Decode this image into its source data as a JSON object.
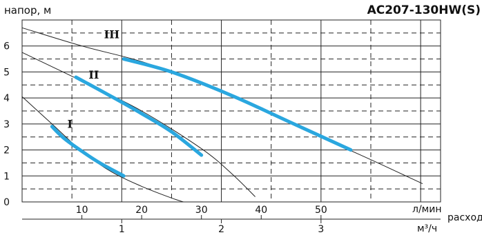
{
  "chart_data": {
    "type": "line",
    "title": "AC207-130HW(S)",
    "ylabel": "напор, м",
    "xlabel": "расход",
    "x_unit_primary": "л/мин",
    "x_unit_secondary": "м³/ч",
    "xlim": [
      0,
      70
    ],
    "ylim": [
      0,
      7
    ],
    "x_ticks": [
      "10",
      "20",
      "30",
      "40",
      "50"
    ],
    "x_ticks_secondary": [
      "1",
      "2",
      "3"
    ],
    "y_ticks": [
      "0",
      "1",
      "2",
      "3",
      "4",
      "5",
      "6"
    ],
    "grid": true,
    "series": [
      {
        "name": "I",
        "curve": [
          [
            0,
            4.05
          ],
          [
            5,
            3.0
          ],
          [
            10,
            1.95
          ],
          [
            15,
            1.15
          ],
          [
            20,
            0.6
          ],
          [
            25,
            0.15
          ],
          [
            27,
            0.0
          ]
        ],
        "operating_range": [
          [
            5,
            2.9
          ],
          [
            7,
            2.45
          ],
          [
            10,
            1.95
          ],
          [
            13,
            1.5
          ],
          [
            17,
            1.0
          ]
        ],
        "label_at": [
          8,
          2.85
        ]
      },
      {
        "name": "II",
        "curve": [
          [
            0,
            5.75
          ],
          [
            10,
            4.65
          ],
          [
            20,
            3.5
          ],
          [
            30,
            2.05
          ],
          [
            35,
            1.1
          ],
          [
            39,
            0.2
          ]
        ],
        "operating_range": [
          [
            9,
            4.8
          ],
          [
            15,
            4.05
          ],
          [
            20,
            3.4
          ],
          [
            25,
            2.7
          ],
          [
            30,
            1.8
          ]
        ],
        "label_at": [
          12,
          4.75
        ]
      },
      {
        "name": "III",
        "curve": [
          [
            0,
            6.7
          ],
          [
            10,
            6.0
          ],
          [
            20,
            5.4
          ],
          [
            30,
            4.6
          ],
          [
            40,
            3.6
          ],
          [
            50,
            2.5
          ],
          [
            60,
            1.45
          ],
          [
            67,
            0.7
          ]
        ],
        "operating_range": [
          [
            17,
            5.5
          ],
          [
            25,
            5.0
          ],
          [
            35,
            4.1
          ],
          [
            45,
            3.05
          ],
          [
            55,
            2.0
          ]
        ],
        "label_at": [
          15,
          6.3
        ]
      }
    ]
  },
  "colors": {
    "curve": "#222222",
    "operating_range": "#2aa7df",
    "grid": "#222222"
  }
}
